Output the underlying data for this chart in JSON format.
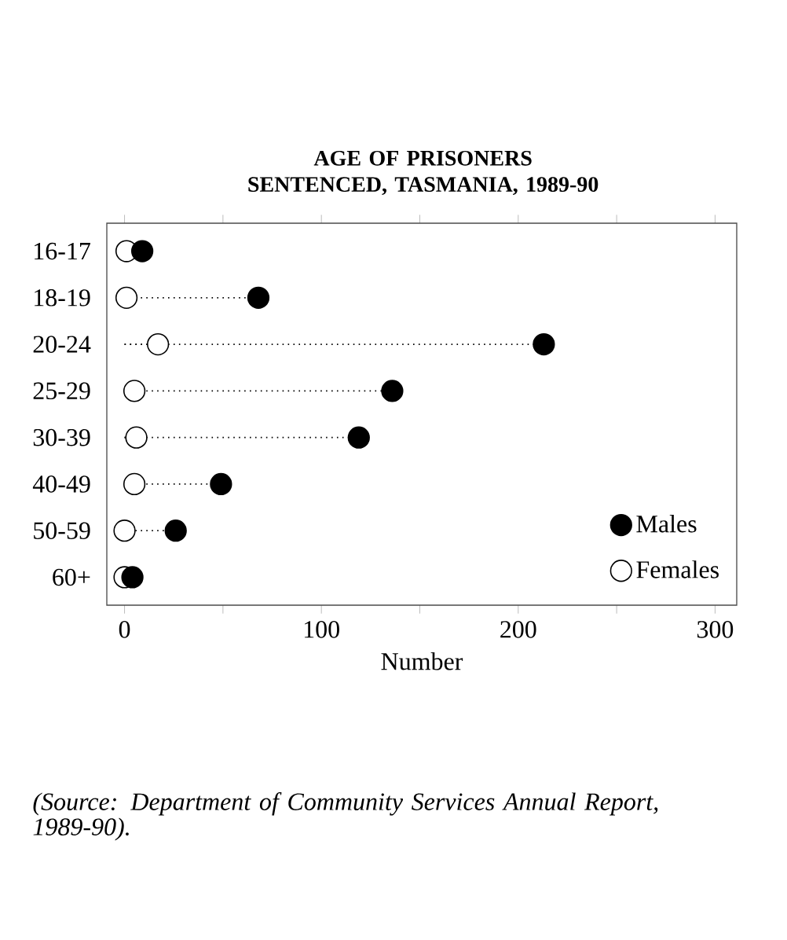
{
  "chart_data": {
    "type": "lollipop",
    "orientation": "horizontal",
    "title": "AGE OF PRISONERS SENTENCED, TASMANIA, 1989-90",
    "xlabel": "Number",
    "categories": [
      "16-17",
      "18-19",
      "20-24",
      "25-29",
      "30-39",
      "40-49",
      "50-59",
      "60+"
    ],
    "series": [
      {
        "name": "Males",
        "color": "#000000",
        "values": [
          9,
          68,
          213,
          136,
          119,
          49,
          26,
          4
        ]
      },
      {
        "name": "Females",
        "color": "#ffffff",
        "values": [
          1,
          1,
          17,
          5,
          6,
          5,
          0,
          0
        ]
      }
    ],
    "xlim": [
      -9,
      311
    ],
    "xticks": [
      0,
      {
        "value": 50,
        "label": null
      },
      100,
      {
        "value": 150,
        "label": null
      },
      200,
      {
        "value": 250,
        "label": null
      },
      300
    ],
    "marker": "circle",
    "line_style": "dotted",
    "legend": "bottom right",
    "grid": false,
    "annotations": [
      "(Source: Department of Community Services Annual Report, 1989-90)."
    ]
  }
}
